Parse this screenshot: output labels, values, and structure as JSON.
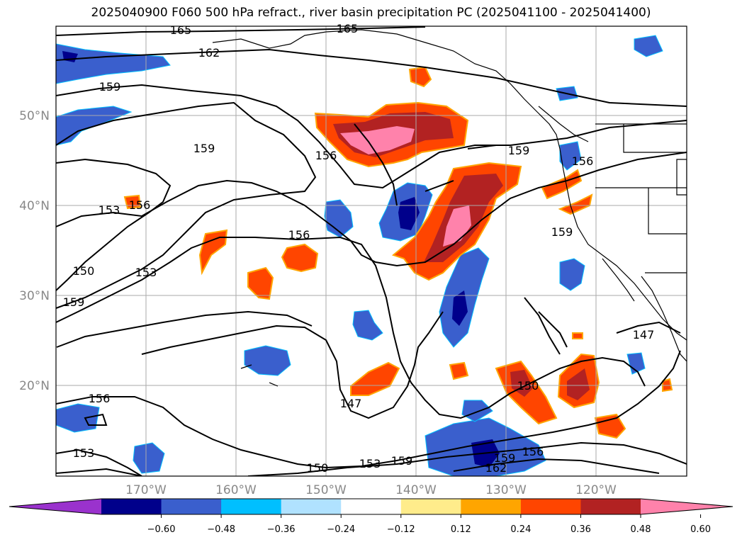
{
  "title": "2025040900 F060 500 hPa refract., river basin precipitation PC (2025041100 - 2025041400)",
  "map": {
    "lat_labels": [
      "50°N",
      "40°N",
      "30°N",
      "20°N"
    ],
    "lon_labels": [
      "170°W",
      "160°W",
      "150°W",
      "140°W",
      "130°W",
      "120°W"
    ],
    "contour_labels": [
      "165",
      "165",
      "162",
      "159",
      "159",
      "156",
      "159",
      "156",
      "153",
      "156",
      "156",
      "159",
      "150",
      "153",
      "159",
      "147",
      "156",
      "153",
      "150",
      "153",
      "159",
      "159",
      "162",
      "156",
      "150",
      "147"
    ],
    "contour_color": "#000000",
    "grid": true,
    "coastlines": true
  },
  "colorbar": {
    "ticks": [
      "−0.60",
      "−0.48",
      "−0.36",
      "−0.24",
      "−0.12",
      "0.12",
      "0.24",
      "0.36",
      "0.48",
      "0.60"
    ],
    "colors": [
      "#9a32cd",
      "#00008b",
      "#3a5fcd",
      "#00bfff",
      "#b0e2ff",
      "#ffffff",
      "#ffec8b",
      "#ffa500",
      "#ff4500",
      "#b22222",
      "#ff82ab"
    ],
    "extend": "both"
  }
}
